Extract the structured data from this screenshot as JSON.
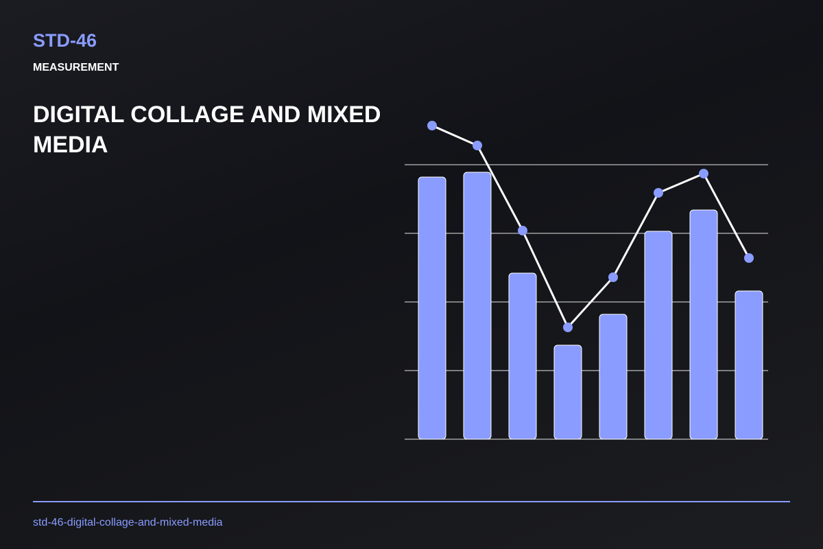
{
  "header": {
    "code": "STD-46",
    "label": "MEASUREMENT",
    "title": "DIGITAL COLLAGE AND MIXED MEDIA"
  },
  "footer": {
    "slug": "std-46-digital-collage-and-mixed-media"
  },
  "chart_data": {
    "type": "bar",
    "categories": [
      null,
      null,
      null,
      null,
      null,
      null,
      null,
      null
    ],
    "series": [
      {
        "type": "bar",
        "color": "#8a9cff",
        "values": [
          3.82,
          3.89,
          2.42,
          1.37,
          1.82,
          3.03,
          3.34,
          2.16
        ]
      },
      {
        "type": "line",
        "color": "#ffffff",
        "marker_color": "#8a9cff",
        "values": [
          4.57,
          4.28,
          3.04,
          1.63,
          2.36,
          3.59,
          3.87,
          2.64
        ]
      }
    ],
    "ylim": [
      0,
      4.6
    ],
    "yticks": [
      0,
      1,
      2,
      3,
      4
    ],
    "grid": true
  }
}
